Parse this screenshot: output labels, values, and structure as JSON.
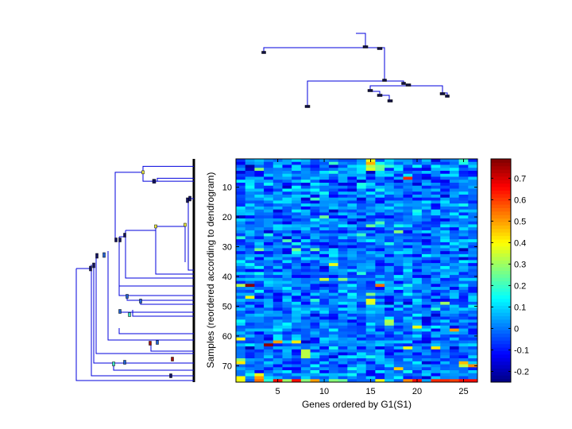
{
  "chart_data": {
    "type": "heatmap",
    "title": "",
    "xlabel": "Genes ordered by G1(S1)",
    "ylabel": "Samples (reordered according to dendrogram)",
    "n_cols": 26,
    "n_rows": 75,
    "x_ticks": [
      5,
      10,
      15,
      20,
      25
    ],
    "y_ticks": [
      10,
      20,
      30,
      40,
      50,
      60,
      70
    ],
    "colorbar": {
      "colormap": "jet",
      "range": [
        -0.25,
        0.79
      ],
      "ticks": [
        -0.2,
        -0.1,
        0,
        0.1,
        0.2,
        0.3,
        0.4,
        0.5,
        0.6,
        0.7
      ],
      "tick_labels": [
        "-0.2",
        "-0.1",
        "0",
        "0.1",
        "0.2",
        "0.3",
        "0.4",
        "0.5",
        "0.6",
        "0.7"
      ]
    },
    "seed": 7,
    "base_mean": 0.0,
    "base_spread": 0.13,
    "highlights": [
      {
        "row": 1,
        "col": 15,
        "value": 0.38
      },
      {
        "row": 2,
        "col": 15,
        "value": 0.48
      },
      {
        "row": 2,
        "col": 16,
        "value": 0.16
      },
      {
        "row": 3,
        "col": 15,
        "value": 0.32
      },
      {
        "row": 3,
        "col": 16,
        "value": 0.25
      },
      {
        "row": 4,
        "col": 3,
        "value": 0.28
      },
      {
        "row": 4,
        "col": 15,
        "value": 0.36
      },
      {
        "row": 4,
        "col": 16,
        "value": 0.24
      },
      {
        "row": 6,
        "col": 19,
        "value": 0.12
      },
      {
        "row": 7,
        "col": 19,
        "value": 0.62
      },
      {
        "row": 20,
        "col": 10,
        "value": 0.25
      },
      {
        "row": 22,
        "col": 16,
        "value": 0.22
      },
      {
        "row": 23,
        "col": 15,
        "value": 0.25
      },
      {
        "row": 25,
        "col": 18,
        "value": 0.28
      },
      {
        "row": 28,
        "col": 6,
        "value": 0.22
      },
      {
        "row": 31,
        "col": 3,
        "value": 0.26
      },
      {
        "row": 31,
        "col": 7,
        "value": 0.26
      },
      {
        "row": 31,
        "col": 9,
        "value": 0.24
      },
      {
        "row": 36,
        "col": 11,
        "value": 0.38
      },
      {
        "row": 39,
        "col": 14,
        "value": 0.18
      },
      {
        "row": 41,
        "col": 10,
        "value": 0.35
      },
      {
        "row": 41,
        "col": 12,
        "value": 0.28
      },
      {
        "row": 43,
        "col": 1,
        "value": 0.32
      },
      {
        "row": 43,
        "col": 2,
        "value": 0.78
      },
      {
        "row": 43,
        "col": 16,
        "value": 0.55
      },
      {
        "row": 46,
        "col": 15,
        "value": 0.27
      },
      {
        "row": 47,
        "col": 2,
        "value": 0.38
      },
      {
        "row": 48,
        "col": 15,
        "value": 0.38
      },
      {
        "row": 49,
        "col": 15,
        "value": 0.36
      },
      {
        "row": 49,
        "col": 23,
        "value": 0.3
      },
      {
        "row": 55,
        "col": 17,
        "value": 0.32
      },
      {
        "row": 56,
        "col": 17,
        "value": 0.3
      },
      {
        "row": 57,
        "col": 20,
        "value": 0.38
      },
      {
        "row": 58,
        "col": 24,
        "value": 0.5
      },
      {
        "row": 61,
        "col": 1,
        "value": 0.4
      },
      {
        "row": 62,
        "col": 5,
        "value": 0.5
      },
      {
        "row": 62,
        "col": 7,
        "value": 0.42
      },
      {
        "row": 63,
        "col": 4,
        "value": 0.77
      },
      {
        "row": 64,
        "col": 19,
        "value": 0.38
      },
      {
        "row": 64,
        "col": 22,
        "value": 0.42
      },
      {
        "row": 65,
        "col": 8,
        "value": 0.33
      },
      {
        "row": 66,
        "col": 8,
        "value": 0.33
      },
      {
        "row": 67,
        "col": 8,
        "value": 0.33
      },
      {
        "row": 68,
        "col": 1,
        "value": 0.28
      },
      {
        "row": 69,
        "col": 1,
        "value": 0.42
      },
      {
        "row": 69,
        "col": 25,
        "value": 0.47
      },
      {
        "row": 70,
        "col": 25,
        "value": 0.33
      },
      {
        "row": 70,
        "col": 26,
        "value": 0.52
      },
      {
        "row": 71,
        "col": 18,
        "value": 0.45
      },
      {
        "row": 73,
        "col": 3,
        "value": 0.38
      },
      {
        "row": 74,
        "col": 1,
        "value": 0.4
      },
      {
        "row": 74,
        "col": 3,
        "value": 0.5
      },
      {
        "row": 75,
        "col": 1,
        "value": 0.38
      },
      {
        "row": 75,
        "col": 3,
        "value": 0.55
      },
      {
        "row": 75,
        "col": 4,
        "value": 0.18
      },
      {
        "row": 75,
        "col": 5,
        "value": 0.65
      },
      {
        "row": 75,
        "col": 6,
        "value": 0.3
      },
      {
        "row": 75,
        "col": 7,
        "value": 0.65
      },
      {
        "row": 75,
        "col": 8,
        "value": 0.28
      },
      {
        "row": 75,
        "col": 9,
        "value": 0.5
      },
      {
        "row": 75,
        "col": 11,
        "value": 0.28
      },
      {
        "row": 75,
        "col": 12,
        "value": 0.25
      },
      {
        "row": 75,
        "col": 16,
        "value": 0.38
      },
      {
        "row": 75,
        "col": 19,
        "value": 0.52
      },
      {
        "row": 75,
        "col": 20,
        "value": 0.65
      },
      {
        "row": 75,
        "col": 22,
        "value": 0.62
      },
      {
        "row": 75,
        "col": 23,
        "value": 0.62
      },
      {
        "row": 75,
        "col": 24,
        "value": 0.6
      },
      {
        "row": 75,
        "col": 25,
        "value": 0.65
      },
      {
        "row": 75,
        "col": 26,
        "value": 0.65
      }
    ],
    "top_dendrogram": {
      "orientation": "top",
      "description": "column dendrogram over genes"
    },
    "left_dendrogram": {
      "orientation": "left",
      "description": "row dendrogram over samples"
    }
  }
}
